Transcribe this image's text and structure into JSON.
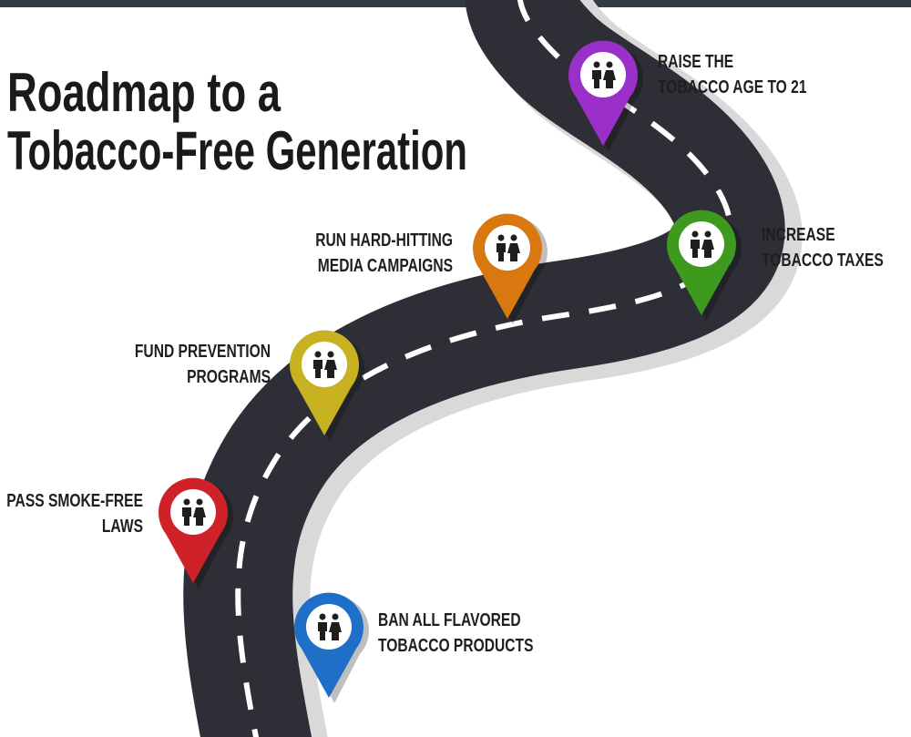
{
  "header": {
    "title": [
      "Roadmap to a",
      "Tobacco-Free Generation"
    ]
  },
  "milestones": [
    {
      "label": [
        "RAISE THE",
        "TOBACCO AGE TO 21"
      ],
      "color": "#9b2fc9"
    },
    {
      "label": [
        "INCREASE",
        "TOBACCO TAXES"
      ],
      "color": "#3e9a1f"
    },
    {
      "label": [
        "RUN HARD-HITTING",
        "MEDIA CAMPAIGNS"
      ],
      "color": "#d9780f"
    },
    {
      "label": [
        "FUND PREVENTION",
        "PROGRAMS"
      ],
      "color": "#c9b221"
    },
    {
      "label": [
        "PASS SMOKE-FREE",
        "LAWS"
      ],
      "color": "#cf2128"
    },
    {
      "label": [
        "BAN ALL FLAVORED",
        "TOBACCO PRODUCTS"
      ],
      "color": "#1f6fc9"
    }
  ]
}
